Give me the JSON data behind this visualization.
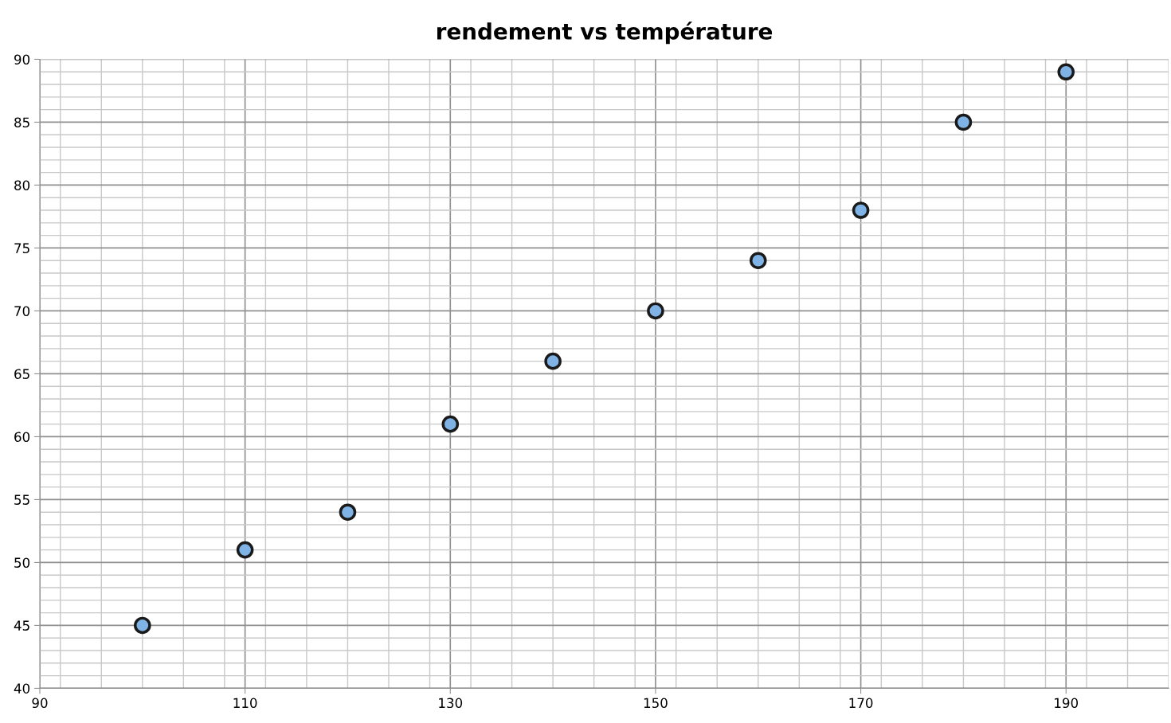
{
  "chart_data": {
    "type": "scatter",
    "title": "rendement vs température",
    "x": [
      100,
      110,
      120,
      130,
      140,
      150,
      160,
      170,
      180,
      190
    ],
    "series": [
      {
        "color": "#7fb2e5",
        "values": [
          45,
          51,
          54,
          61,
          66,
          70,
          74,
          78,
          85,
          89
        ]
      }
    ],
    "xlim": [
      90,
      200
    ],
    "xticks": [
      90,
      110,
      130,
      150,
      170,
      190
    ],
    "ylim": [
      40,
      90
    ],
    "yticks": [
      40,
      45,
      50,
      55,
      60,
      65,
      70,
      75,
      80,
      85,
      90
    ],
    "grid": true,
    "marker": "circle"
  }
}
